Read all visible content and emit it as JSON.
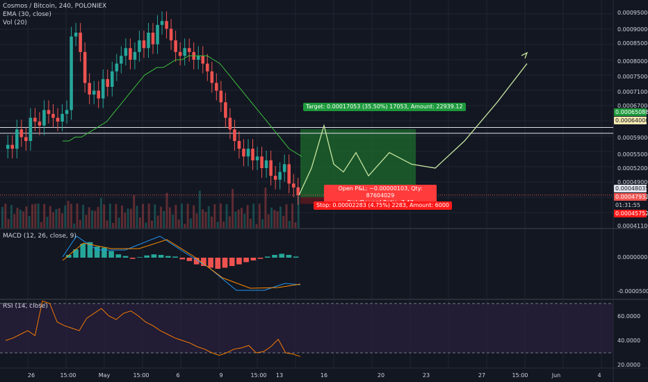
{
  "header": {
    "title": "Cosmos / Bitcoin, 240, POLONIEX",
    "ema": "EMA (30, close)",
    "vol": "Vol (20)"
  },
  "macd_label": "MACD (12, 26, close, 9)",
  "rsi_label": "RSI (14, close)",
  "colors": {
    "bg": "#131722",
    "grid": "#1f2431",
    "up": "#26a69a",
    "down": "#ef5350",
    "ema": "#3cbf3c",
    "macd": "#2196f3",
    "signal": "#ff8c00",
    "rsi": "#f57c00",
    "rsiband": "#2a1f3d",
    "projection": "#c8e6a0",
    "target_fill": "#1e6b2e",
    "stop_fill": "#ff1a1a"
  },
  "price_axis": {
    "ticks": [
      "0.00095000",
      "0.00090000",
      "0.00085000",
      "0.00080000",
      "0.00075000",
      "0.00071000",
      "0.00067000",
      "0.00059000",
      "0.00055000",
      "0.00052000",
      "0.00049000",
      "0.00041100"
    ]
  },
  "price_tags": {
    "target": "0.00065088",
    "entry": "0.00064000",
    "last": "0.00048035",
    "stop_tag": "0.00047932",
    "time": "01:31:55",
    "stop": "0.00045752"
  },
  "macd_axis": {
    "ticks": [
      "0.0000000",
      "-0.0000500"
    ]
  },
  "rsi_axis": {
    "ticks": [
      "60.0000",
      "40.0000",
      "20.0000"
    ]
  },
  "time_axis": {
    "labels": [
      "26",
      "15:00",
      "May",
      "15:00",
      "6",
      "9",
      "15:00",
      "13",
      "16",
      "20",
      "23",
      "27",
      "15:00",
      "Jun",
      "4"
    ]
  },
  "trade": {
    "target_text": "Target: 0.00017053 (35.50%) 17053, Amount: 22939.12",
    "open_line1": "Open P&L: −0.00000103, Qty: 87604029",
    "open_line2": "Risk/Reward Ratio: 7.47",
    "stop_text": "Stop: 0.00002283 (4.75%) 2283, Amount: 6000"
  },
  "chart_data": {
    "type": "candlestick",
    "title": "Cosmos / Bitcoin, 240, POLONIEX",
    "ylim": [
      0.00041,
      0.00097
    ],
    "closes": [
      0.00061,
      0.0006,
      0.00065,
      0.00063,
      0.00062,
      0.00068,
      0.00067,
      0.00066,
      0.0007,
      0.00069,
      0.00068,
      0.00067,
      0.00069,
      0.0007,
      0.00089,
      0.0009,
      0.00085,
      0.00077,
      0.00074,
      0.00075,
      0.00073,
      0.00078,
      0.00076,
      0.0008,
      0.00082,
      0.00084,
      0.00086,
      0.00083,
      0.00085,
      0.00088,
      0.00086,
      0.0009,
      0.00087,
      0.00092,
      0.00093,
      0.00091,
      0.00088,
      0.00085,
      0.00084,
      0.00086,
      0.00085,
      0.00083,
      0.00084,
      0.00082,
      0.0008,
      0.00077,
      0.00075,
      0.00072,
      0.00068,
      0.00065,
      0.00062,
      0.0006,
      0.00058,
      0.0006,
      0.00057,
      0.00058,
      0.00055,
      0.00057,
      0.00053,
      0.00052,
      0.00054,
      0.00056,
      0.00051,
      0.0005,
      0.00048
    ],
    "ema": [
      0.00062,
      0.00062,
      0.00063,
      0.00063,
      0.00064,
      0.00065,
      0.00066,
      0.00067,
      0.00069,
      0.00071,
      0.00073,
      0.00075,
      0.00077,
      0.00079,
      0.0008,
      0.00081,
      0.00081,
      0.00082,
      0.00083,
      0.00083,
      0.00084,
      0.00084,
      0.00084,
      0.00084,
      0.00083,
      0.00082,
      0.0008,
      0.00078,
      0.00076,
      0.00074,
      0.00072,
      0.0007,
      0.00068,
      0.00066,
      0.00064,
      0.00062,
      0.0006,
      0.00059,
      0.00058
    ],
    "projection": [
      0.00048,
      0.00055,
      0.00066,
      0.00056,
      0.00054,
      0.00059,
      0.00053,
      0.00059,
      0.00056,
      0.00055,
      0.00062,
      0.00072,
      0.00082
    ],
    "macd_hist": [
      0.5,
      1.5,
      2.5,
      2.8,
      2.0,
      1.8,
      1.2,
      0.6,
      0.3,
      -0.2,
      0.1,
      0.4,
      0.6,
      0.5,
      0.3,
      0.2,
      -0.3,
      -0.6,
      -1.2,
      -1.5,
      -1.8,
      -2.0,
      -1.8,
      -1.5,
      -1.2,
      -0.8,
      -0.5,
      -0.2,
      0.2,
      0.5,
      0.7,
      0.5,
      0.2
    ],
    "rsi": [
      40,
      42,
      45,
      48,
      44,
      72,
      70,
      55,
      52,
      50,
      48,
      58,
      62,
      66,
      60,
      57,
      62,
      64,
      60,
      55,
      52,
      48,
      45,
      42,
      40,
      38,
      35,
      33,
      30,
      28,
      30,
      33,
      34,
      36,
      30,
      31,
      35,
      41,
      30,
      29,
      27
    ]
  }
}
